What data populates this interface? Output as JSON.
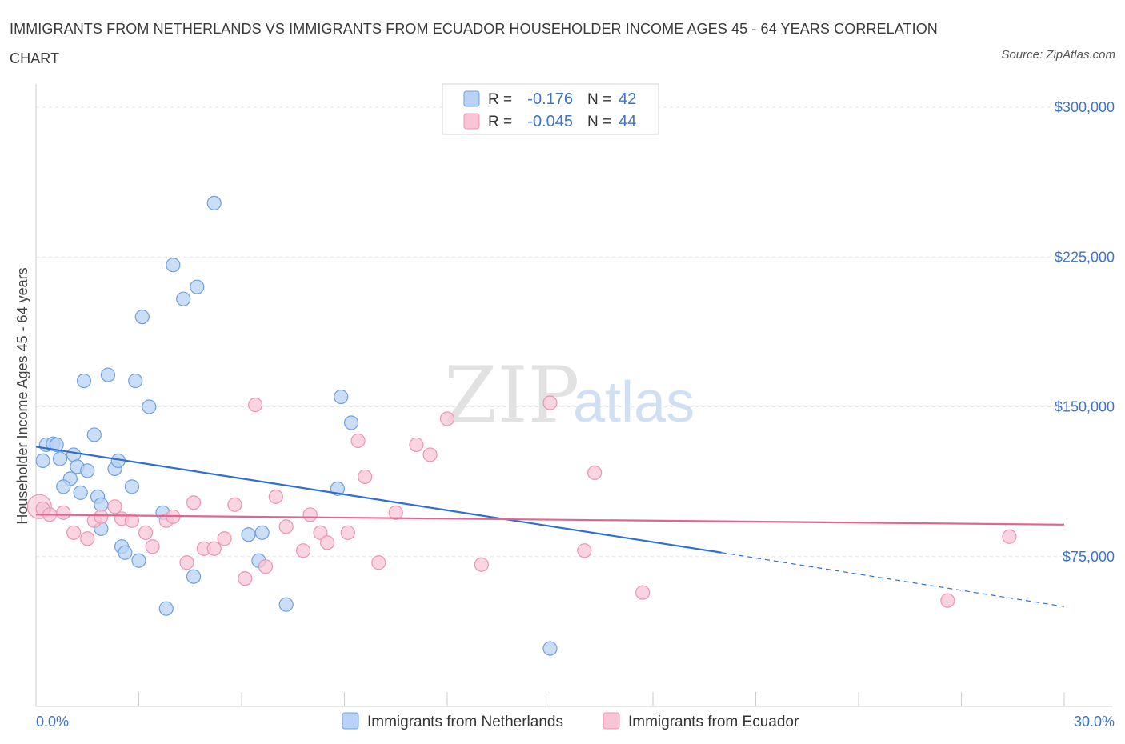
{
  "header": {
    "title": "IMMIGRANTS FROM NETHERLANDS VS IMMIGRANTS FROM ECUADOR HOUSEHOLDER INCOME AGES 45 - 64 YEARS CORRELATION CHART",
    "source": "Source: ZipAtlas.com"
  },
  "watermark": {
    "zip": "ZIP",
    "atlas": "atlas"
  },
  "colors": {
    "netherlands_fill": "#b9d3f6",
    "netherlands_stroke": "#6f9fe0",
    "netherlands_line": "#2f6fd4",
    "ecuador_fill": "#f8c5d6",
    "ecuador_stroke": "#ec94b3",
    "ecuador_line": "#e2658f",
    "tick_color": "#3f73c6",
    "grid": "#e6e6e6"
  },
  "legend": {
    "r_label": "R =",
    "n_label": "N =",
    "rows": [
      {
        "r": "-0.176",
        "n": "42"
      },
      {
        "r": "-0.045",
        "n": "44"
      }
    ]
  },
  "chart_data": {
    "type": "scatter",
    "xlabel": "",
    "ylabel": "Householder Income Ages 45 - 64 years",
    "xlim": [
      0,
      30
    ],
    "ylim": [
      0,
      310000
    ],
    "x_tick_labels": [
      "0.0%",
      "30.0%"
    ],
    "y_ticks": [
      75000,
      150000,
      225000,
      300000
    ],
    "y_tick_labels": [
      "$75,000",
      "$150,000",
      "$225,000",
      "$300,000"
    ],
    "grid": true,
    "legend_position": "top-center",
    "series": [
      {
        "name": "Immigrants from Netherlands",
        "r": -0.176,
        "n": 42,
        "trend": {
          "x0": 0,
          "y0": 130000,
          "x1": 20,
          "y1": 77000,
          "dashed_to_x": 30,
          "dashed_to_y": 50000
        },
        "points": [
          [
            0.2,
            99000
          ],
          [
            0.2,
            123000
          ],
          [
            0.3,
            131000
          ],
          [
            0.5,
            131500
          ],
          [
            0.6,
            131000
          ],
          [
            0.7,
            124000
          ],
          [
            1.0,
            114000
          ],
          [
            1.1,
            126000
          ],
          [
            0.8,
            110000
          ],
          [
            1.2,
            120000
          ],
          [
            1.3,
            107000
          ],
          [
            1.5,
            118000
          ],
          [
            1.7,
            136000
          ],
          [
            1.8,
            105000
          ],
          [
            1.9,
            89000
          ],
          [
            1.4,
            163000
          ],
          [
            2.1,
            166000
          ],
          [
            2.3,
            119000
          ],
          [
            2.4,
            123000
          ],
          [
            2.5,
            80000
          ],
          [
            2.6,
            77000
          ],
          [
            2.8,
            110000
          ],
          [
            3.0,
            73000
          ],
          [
            2.9,
            163000
          ],
          [
            3.1,
            195000
          ],
          [
            3.3,
            150000
          ],
          [
            3.7,
            97000
          ],
          [
            3.8,
            49000
          ],
          [
            4.0,
            221000
          ],
          [
            4.3,
            204000
          ],
          [
            4.6,
            65000
          ],
          [
            4.7,
            210000
          ],
          [
            5.2,
            252000
          ],
          [
            6.2,
            86000
          ],
          [
            6.5,
            73000
          ],
          [
            6.6,
            87000
          ],
          [
            7.3,
            51000
          ],
          [
            8.8,
            109000
          ],
          [
            8.9,
            155000
          ],
          [
            9.2,
            142000
          ],
          [
            15.0,
            29000
          ],
          [
            1.9,
            101000
          ]
        ]
      },
      {
        "name": "Immigrants from Ecuador",
        "r": -0.045,
        "n": 44,
        "trend": {
          "x0": 0,
          "y0": 96000,
          "x1": 30,
          "y1": 91000
        },
        "points": [
          [
            0.2,
            99000
          ],
          [
            0.4,
            96000
          ],
          [
            0.8,
            97000
          ],
          [
            1.1,
            87000
          ],
          [
            1.5,
            84000
          ],
          [
            1.7,
            93000
          ],
          [
            1.9,
            95000
          ],
          [
            2.3,
            100000
          ],
          [
            2.5,
            94000
          ],
          [
            2.8,
            93000
          ],
          [
            3.2,
            87000
          ],
          [
            3.4,
            80000
          ],
          [
            3.8,
            93000
          ],
          [
            4.0,
            95000
          ],
          [
            4.4,
            72000
          ],
          [
            4.6,
            102000
          ],
          [
            4.9,
            79000
          ],
          [
            5.2,
            79000
          ],
          [
            5.5,
            84000
          ],
          [
            5.8,
            101000
          ],
          [
            6.1,
            64000
          ],
          [
            6.4,
            151000
          ],
          [
            6.7,
            70000
          ],
          [
            7.0,
            105000
          ],
          [
            7.3,
            90000
          ],
          [
            7.8,
            78000
          ],
          [
            8.0,
            96000
          ],
          [
            8.3,
            87000
          ],
          [
            8.5,
            82000
          ],
          [
            9.1,
            87000
          ],
          [
            9.4,
            133000
          ],
          [
            9.6,
            115000
          ],
          [
            10.0,
            72000
          ],
          [
            10.5,
            97000
          ],
          [
            11.1,
            131000
          ],
          [
            11.5,
            126000
          ],
          [
            12.0,
            144000
          ],
          [
            13.0,
            71000
          ],
          [
            15.0,
            152000
          ],
          [
            16.0,
            78000
          ],
          [
            16.3,
            117000
          ],
          [
            17.7,
            57000
          ],
          [
            26.6,
            53000
          ],
          [
            28.4,
            85000
          ]
        ]
      }
    ]
  }
}
